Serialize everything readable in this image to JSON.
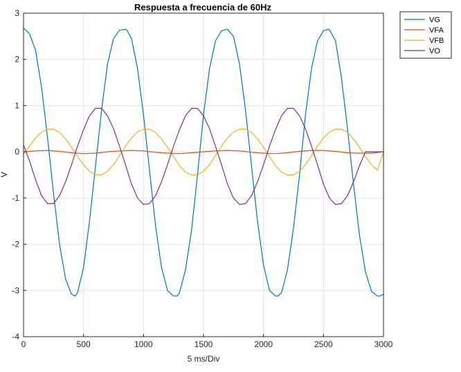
{
  "chart_data": {
    "type": "line",
    "title": "Respuesta a frecuencia de 60Hz",
    "xlabel": "5 ms/Div",
    "ylabel": "V",
    "xlim": [
      0,
      3000
    ],
    "ylim": [
      -4,
      3
    ],
    "xticks": [
      0,
      500,
      1000,
      1500,
      2000,
      2500,
      3000
    ],
    "yticks": [
      -4,
      -3,
      -2,
      -1,
      0,
      1,
      2,
      3
    ],
    "grid": true,
    "legend_position": "top-right, outside",
    "series": [
      {
        "name": "VG",
        "color": "#0072bd",
        "x": [
          0,
          50,
          100,
          150,
          200,
          250,
          300,
          350,
          400,
          430,
          450,
          500,
          550,
          600,
          650,
          700,
          750,
          800,
          850,
          860,
          900,
          950,
          1000,
          1050,
          1100,
          1150,
          1200,
          1250,
          1280,
          1300,
          1350,
          1400,
          1450,
          1500,
          1550,
          1600,
          1650,
          1700,
          1750,
          1800,
          1850,
          1900,
          1950,
          2000,
          2050,
          2100,
          2120,
          2150,
          2200,
          2250,
          2300,
          2350,
          2400,
          2450,
          2500,
          2540,
          2550,
          2600,
          2650,
          2700,
          2750,
          2800,
          2850,
          2900,
          2950,
          2970,
          3000
        ],
        "y": [
          2.68,
          2.55,
          2.2,
          1.4,
          0.3,
          -0.9,
          -2.0,
          -2.75,
          -3.08,
          -3.12,
          -3.05,
          -2.5,
          -1.5,
          -0.3,
          0.9,
          1.9,
          2.45,
          2.63,
          2.65,
          2.64,
          2.45,
          1.8,
          0.8,
          -0.4,
          -1.6,
          -2.5,
          -3.0,
          -3.12,
          -3.12,
          -3.05,
          -2.55,
          -1.7,
          -0.5,
          0.8,
          1.8,
          2.4,
          2.62,
          2.65,
          2.5,
          1.9,
          0.9,
          -0.3,
          -1.5,
          -2.45,
          -3.0,
          -3.12,
          -3.12,
          -3.05,
          -2.55,
          -1.65,
          -0.5,
          0.8,
          1.8,
          2.4,
          2.62,
          2.65,
          2.64,
          2.4,
          1.6,
          0.5,
          -0.7,
          -1.8,
          -2.6,
          -3.02,
          -3.12,
          -3.12,
          -3.08
        ]
      },
      {
        "name": "VFA",
        "color": "#d95319",
        "x": [
          0,
          100,
          200,
          300,
          400,
          500,
          600,
          700,
          800,
          900,
          1000,
          1100,
          1200,
          1300,
          1400,
          1500,
          1600,
          1700,
          1800,
          1900,
          2000,
          2100,
          2200,
          2300,
          2400,
          2500,
          2600,
          2700,
          2800,
          2900,
          3000
        ],
        "y": [
          0.0,
          0.02,
          0.03,
          0.01,
          -0.02,
          -0.04,
          -0.03,
          0.0,
          0.02,
          0.03,
          0.02,
          -0.01,
          -0.03,
          -0.04,
          -0.02,
          0.0,
          0.02,
          0.03,
          0.02,
          -0.01,
          -0.03,
          -0.04,
          -0.02,
          0.01,
          0.03,
          0.03,
          0.01,
          -0.02,
          -0.03,
          -0.03,
          0.0
        ]
      },
      {
        "name": "VFB",
        "color": "#edb120",
        "x": [
          0,
          50,
          100,
          150,
          200,
          250,
          300,
          350,
          400,
          450,
          500,
          550,
          600,
          650,
          700,
          750,
          800,
          850,
          900,
          950,
          1000,
          1050,
          1100,
          1150,
          1200,
          1250,
          1300,
          1350,
          1400,
          1450,
          1500,
          1550,
          1600,
          1650,
          1700,
          1750,
          1800,
          1850,
          1900,
          1950,
          2000,
          2050,
          2100,
          2150,
          2200,
          2250,
          2300,
          2350,
          2400,
          2450,
          2500,
          2550,
          2600,
          2650,
          2700,
          2750,
          2800,
          2850,
          2900,
          2950,
          3000
        ],
        "y": [
          -0.05,
          0.12,
          0.3,
          0.43,
          0.49,
          0.49,
          0.42,
          0.28,
          0.1,
          -0.1,
          -0.28,
          -0.42,
          -0.5,
          -0.5,
          -0.42,
          -0.28,
          -0.08,
          0.12,
          0.3,
          0.43,
          0.49,
          0.49,
          0.42,
          0.28,
          0.1,
          -0.1,
          -0.3,
          -0.44,
          -0.5,
          -0.5,
          -0.42,
          -0.28,
          -0.08,
          0.12,
          0.3,
          0.43,
          0.49,
          0.49,
          0.42,
          0.28,
          0.1,
          -0.1,
          -0.3,
          -0.44,
          -0.5,
          -0.5,
          -0.42,
          -0.28,
          -0.08,
          0.12,
          0.3,
          0.43,
          0.49,
          0.49,
          0.42,
          0.28,
          0.1,
          -0.1,
          -0.28,
          -0.4,
          0.0
        ]
      },
      {
        "name": "VO",
        "color": "#7e2f8e",
        "x": [
          0,
          50,
          100,
          150,
          200,
          250,
          300,
          350,
          400,
          450,
          500,
          550,
          600,
          650,
          700,
          750,
          800,
          850,
          900,
          950,
          1000,
          1050,
          1100,
          1150,
          1200,
          1250,
          1300,
          1350,
          1400,
          1450,
          1500,
          1550,
          1600,
          1650,
          1700,
          1750,
          1800,
          1850,
          1900,
          1950,
          2000,
          2050,
          2100,
          2150,
          2200,
          2250,
          2300,
          2350,
          2400,
          2450,
          2500,
          2550,
          2600,
          2650,
          2700,
          2750,
          2800,
          2850,
          2900,
          2950,
          3000
        ],
        "y": [
          0.15,
          -0.2,
          -0.6,
          -0.95,
          -1.12,
          -1.12,
          -0.95,
          -0.65,
          -0.28,
          0.12,
          0.48,
          0.78,
          0.94,
          0.94,
          0.78,
          0.5,
          0.12,
          -0.28,
          -0.7,
          -1.0,
          -1.14,
          -1.12,
          -0.95,
          -0.65,
          -0.28,
          0.12,
          0.48,
          0.78,
          0.94,
          0.94,
          0.78,
          0.5,
          0.12,
          -0.28,
          -0.7,
          -1.0,
          -1.14,
          -1.12,
          -0.95,
          -0.65,
          -0.28,
          0.12,
          0.48,
          0.78,
          0.94,
          0.94,
          0.78,
          0.5,
          0.12,
          -0.28,
          -0.7,
          -1.0,
          -1.14,
          -1.12,
          -0.95,
          -0.65,
          -0.3,
          0.0,
          0.0,
          0.0,
          0.0
        ]
      }
    ]
  }
}
